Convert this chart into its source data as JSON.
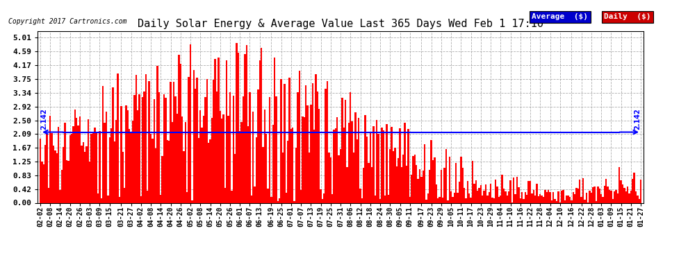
{
  "title": "Daily Solar Energy & Average Value Last 365 Days Wed Feb 1 17:10",
  "copyright": "Copyright 2017 Cartronics.com",
  "average_value": 2.142,
  "average_label": "2.142",
  "bar_color": "#FF0000",
  "avg_line_color": "#0000FF",
  "background_color": "#FFFFFF",
  "plot_bg_color": "#FFFFFF",
  "yticks": [
    0.0,
    0.42,
    0.83,
    1.25,
    1.67,
    2.09,
    2.5,
    2.92,
    3.34,
    3.75,
    4.17,
    4.59,
    5.01
  ],
  "ylim": [
    0.0,
    5.2
  ],
  "legend_avg_color": "#0000CC",
  "legend_daily_color": "#CC0000",
  "legend_avg_text": "Average  ($)",
  "legend_daily_text": "Daily  ($)",
  "x_dates": [
    "02-02",
    "02-08",
    "02-14",
    "02-20",
    "02-26",
    "03-03",
    "03-09",
    "03-15",
    "03-21",
    "03-27",
    "04-02",
    "04-08",
    "04-14",
    "04-20",
    "04-26",
    "05-02",
    "05-08",
    "05-14",
    "05-20",
    "05-26",
    "06-01",
    "06-07",
    "06-13",
    "06-19",
    "06-25",
    "07-01",
    "07-07",
    "07-13",
    "07-19",
    "07-25",
    "07-31",
    "08-06",
    "08-12",
    "08-18",
    "08-24",
    "08-30",
    "09-05",
    "09-11",
    "09-17",
    "09-23",
    "09-29",
    "10-05",
    "10-11",
    "10-17",
    "10-23",
    "10-29",
    "11-04",
    "11-10",
    "11-16",
    "11-22",
    "11-28",
    "12-04",
    "12-10",
    "12-16",
    "12-22",
    "12-28",
    "01-03",
    "01-09",
    "01-15",
    "01-21",
    "01-27"
  ],
  "n_days": 365
}
